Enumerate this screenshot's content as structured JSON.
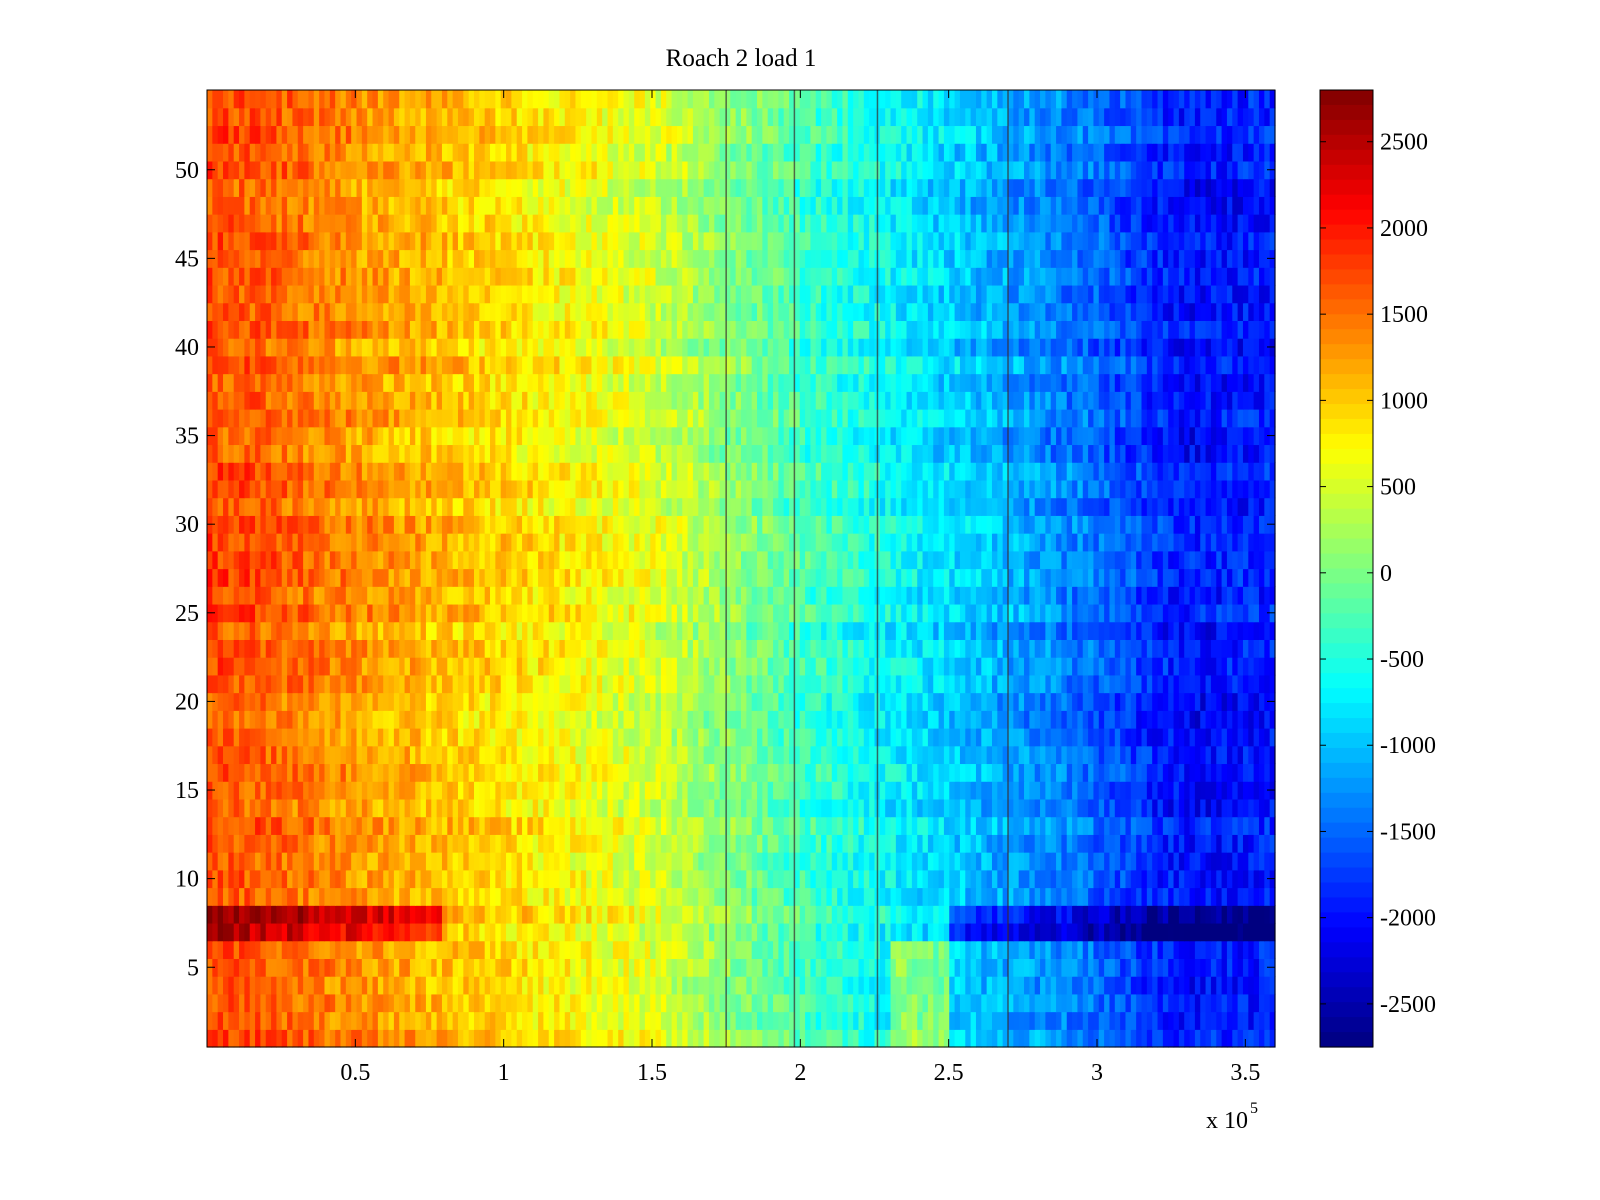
{
  "chart_data": {
    "type": "heatmap",
    "title": "Roach 2 load 1",
    "xlabel": "",
    "ylabel": "",
    "x_multiplier_label": {
      "base": "x 10",
      "exponent": "5"
    },
    "xlim": [
      0,
      360000
    ],
    "ylim": [
      0.5,
      54.5
    ],
    "x_ticks": [
      {
        "value": 0.5,
        "label": "0.5"
      },
      {
        "value": 1,
        "label": "1"
      },
      {
        "value": 1.5,
        "label": "1.5"
      },
      {
        "value": 2,
        "label": "2"
      },
      {
        "value": 2.5,
        "label": "2.5"
      },
      {
        "value": 3,
        "label": "3"
      },
      {
        "value": 3.5,
        "label": "3.5"
      }
    ],
    "y_ticks": [
      {
        "value": 5,
        "label": "5"
      },
      {
        "value": 10,
        "label": "10"
      },
      {
        "value": 15,
        "label": "15"
      },
      {
        "value": 20,
        "label": "20"
      },
      {
        "value": 25,
        "label": "25"
      },
      {
        "value": 30,
        "label": "30"
      },
      {
        "value": 35,
        "label": "35"
      },
      {
        "value": 40,
        "label": "40"
      },
      {
        "value": 45,
        "label": "45"
      },
      {
        "value": 50,
        "label": "50"
      }
    ],
    "color_range": [
      -2750,
      2800
    ],
    "colormap": "jet",
    "colorbar_ticks": [
      {
        "value": 2500,
        "label": "2500"
      },
      {
        "value": 2000,
        "label": "2000"
      },
      {
        "value": 1500,
        "label": "1500"
      },
      {
        "value": 1000,
        "label": "1000"
      },
      {
        "value": 500,
        "label": "500"
      },
      {
        "value": 0,
        "label": "0"
      },
      {
        "value": -500,
        "label": "-500"
      },
      {
        "value": -1000,
        "label": "-1000"
      },
      {
        "value": -1500,
        "label": "-1500"
      },
      {
        "value": -2000,
        "label": "-2000"
      },
      {
        "value": -2500,
        "label": "-2500"
      }
    ],
    "rows": 54,
    "x_profile": [
      {
        "x": 0,
        "value": 1700
      },
      {
        "x": 20000,
        "value": 1600
      },
      {
        "x": 50000,
        "value": 1300
      },
      {
        "x": 100000,
        "value": 900
      },
      {
        "x": 150000,
        "value": 500
      },
      {
        "x": 200000,
        "value": -300
      },
      {
        "x": 250000,
        "value": -900
      },
      {
        "x": 300000,
        "value": -1500
      },
      {
        "x": 330000,
        "value": -2000
      },
      {
        "x": 360000,
        "value": -1900
      }
    ],
    "highlighted_rows": [
      {
        "rows": [
          7,
          8
        ],
        "note_value_offset": 700
      },
      {
        "rows": [
          1,
          2,
          3,
          4,
          5,
          6
        ],
        "note_value_offset": 0
      }
    ],
    "vertical_dark_lines_x": [
      175000,
      198000,
      226000,
      270000
    ]
  }
}
